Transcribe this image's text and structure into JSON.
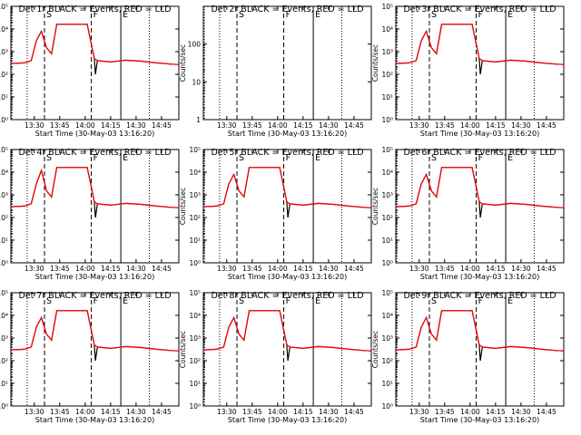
{
  "chart_data": [
    {
      "type": "line",
      "title": "Det 1r BLACK = Events, RED = LLD",
      "xlabel": "Start Time (30-May-03 13:16:20)",
      "ylabel": "Counts/sec",
      "y_scale": "log",
      "ylim": [
        1,
        100000
      ],
      "yticks": [
        "10⁰",
        "10¹",
        "10²",
        "10³",
        "10⁴",
        "10⁵"
      ],
      "xlim": [
        13.27,
        14.92
      ],
      "xticks": [
        "13:30",
        "13:45",
        "14:00",
        "14:15",
        "14:30",
        "14:45"
      ],
      "markers": [
        "S",
        "F",
        "E"
      ],
      "has_data": true,
      "series": [
        {
          "name": "Events",
          "color": "#000000",
          "x": [
            13.27,
            13.4,
            13.47,
            13.52,
            13.57,
            13.62,
            13.67,
            13.72,
            13.87,
            14.02,
            14.09,
            14.1,
            14.12,
            14.25,
            14.4,
            14.55,
            14.7,
            14.85,
            14.92
          ],
          "y": [
            300,
            320,
            400,
            3000,
            8000,
            1500,
            800,
            16000,
            16000,
            16000,
            500,
            100,
            400,
            350,
            420,
            380,
            320,
            280,
            270
          ]
        },
        {
          "name": "LLD",
          "color": "#ff0000",
          "x": [
            13.27,
            13.4,
            13.47,
            13.52,
            13.57,
            13.62,
            13.67,
            13.72,
            13.87,
            14.02,
            14.09,
            14.12,
            14.25,
            14.4,
            14.55,
            14.7,
            14.85,
            14.92
          ],
          "y": [
            300,
            320,
            400,
            3000,
            8000,
            1500,
            800,
            16000,
            16000,
            16000,
            500,
            400,
            350,
            420,
            380,
            320,
            280,
            270
          ]
        }
      ]
    },
    {
      "type": "line",
      "title": "Det 2r BLACK = Events, RED = LLD",
      "xlabel": "Start Time (30-May-03 13:16:20)",
      "ylabel": "Counts/sec",
      "y_scale": "log",
      "ylim": [
        1,
        1000
      ],
      "yticks": [
        "1",
        "10",
        "100"
      ],
      "xlim": [
        13.27,
        14.92
      ],
      "xticks": [
        "13:30",
        "13:45",
        "14:00",
        "14:15",
        "14:30",
        "14:45"
      ],
      "markers": [
        "S",
        "F",
        "E"
      ],
      "has_data": false,
      "series": []
    },
    {
      "type": "line",
      "title": "Det 3r BLACK = Events, RED = LLD",
      "xlabel": "Start Time (30-May-03 13:16:20)",
      "ylabel": "Counts/sec",
      "y_scale": "log",
      "ylim": [
        1,
        100000
      ],
      "yticks": [
        "10⁰",
        "10¹",
        "10²",
        "10³",
        "10⁴",
        "10⁵"
      ],
      "xlim": [
        13.27,
        14.92
      ],
      "xticks": [
        "13:30",
        "13:45",
        "14:00",
        "14:15",
        "14:30",
        "14:45"
      ],
      "markers": [
        "S",
        "F",
        "E"
      ],
      "has_data": true,
      "series": [
        {
          "name": "Events",
          "color": "#000000",
          "x": [
            13.27,
            13.4,
            13.47,
            13.52,
            13.57,
            13.62,
            13.67,
            13.72,
            13.87,
            14.02,
            14.09,
            14.1,
            14.12,
            14.25,
            14.4,
            14.55,
            14.7,
            14.85,
            14.92
          ],
          "y": [
            300,
            320,
            400,
            3000,
            8000,
            1500,
            800,
            16000,
            16000,
            16000,
            500,
            100,
            400,
            350,
            420,
            380,
            320,
            280,
            270
          ]
        },
        {
          "name": "LLD",
          "color": "#ff0000",
          "x": [
            13.27,
            13.4,
            13.47,
            13.52,
            13.57,
            13.62,
            13.67,
            13.72,
            13.87,
            14.02,
            14.09,
            14.12,
            14.25,
            14.4,
            14.55,
            14.7,
            14.85,
            14.92
          ],
          "y": [
            300,
            320,
            400,
            3000,
            8000,
            1500,
            800,
            16000,
            16000,
            16000,
            500,
            400,
            350,
            420,
            380,
            320,
            280,
            270
          ]
        }
      ]
    },
    {
      "type": "line",
      "title": "Det 4r BLACK = Events, RED = LLD",
      "xlabel": "Start Time (30-May-03 13:16:20)",
      "ylabel": "Counts/sec",
      "y_scale": "log",
      "ylim": [
        1,
        100000
      ],
      "yticks": [
        "10⁰",
        "10¹",
        "10²",
        "10³",
        "10⁴",
        "10⁵"
      ],
      "xlim": [
        13.27,
        14.92
      ],
      "xticks": [
        "13:30",
        "13:45",
        "14:00",
        "14:15",
        "14:30",
        "14:45"
      ],
      "markers": [
        "S",
        "F",
        "E"
      ],
      "has_data": true,
      "series": [
        {
          "name": "Events",
          "color": "#000000",
          "x": [
            13.27,
            13.4,
            13.47,
            13.52,
            13.57,
            13.62,
            13.67,
            13.72,
            13.87,
            14.02,
            14.09,
            14.1,
            14.12,
            14.25,
            14.4,
            14.55,
            14.7,
            14.85,
            14.92
          ],
          "y": [
            300,
            320,
            400,
            3000,
            12000,
            1500,
            800,
            16000,
            16000,
            16000,
            500,
            100,
            400,
            350,
            420,
            380,
            320,
            280,
            270
          ]
        },
        {
          "name": "LLD",
          "color": "#ff0000",
          "x": [
            13.27,
            13.4,
            13.47,
            13.52,
            13.57,
            13.62,
            13.67,
            13.72,
            13.87,
            14.02,
            14.09,
            14.12,
            14.25,
            14.4,
            14.55,
            14.7,
            14.85,
            14.92
          ],
          "y": [
            300,
            320,
            400,
            3000,
            12000,
            1500,
            800,
            16000,
            16000,
            16000,
            500,
            400,
            350,
            420,
            380,
            320,
            280,
            270
          ]
        }
      ]
    },
    {
      "type": "line",
      "title": "Det 5r BLACK = Events, RED = LLD",
      "xlabel": "Start Time (30-May-03 13:16:20)",
      "ylabel": "Counts/sec",
      "y_scale": "log",
      "ylim": [
        1,
        100000
      ],
      "yticks": [
        "10⁰",
        "10¹",
        "10²",
        "10³",
        "10⁴",
        "10⁵"
      ],
      "xlim": [
        13.27,
        14.92
      ],
      "xticks": [
        "13:30",
        "13:45",
        "14:00",
        "14:15",
        "14:30",
        "14:45"
      ],
      "markers": [
        "S",
        "F",
        "E"
      ],
      "has_data": true,
      "series": [
        {
          "name": "Events",
          "color": "#000000",
          "x": [
            13.27,
            13.4,
            13.47,
            13.52,
            13.57,
            13.62,
            13.67,
            13.72,
            13.87,
            14.02,
            14.09,
            14.1,
            14.12,
            14.25,
            14.4,
            14.55,
            14.7,
            14.85,
            14.92
          ],
          "y": [
            300,
            320,
            400,
            3000,
            8000,
            1500,
            800,
            16000,
            16000,
            16000,
            500,
            100,
            400,
            350,
            420,
            380,
            320,
            280,
            270
          ]
        },
        {
          "name": "LLD",
          "color": "#ff0000",
          "x": [
            13.27,
            13.4,
            13.47,
            13.52,
            13.57,
            13.62,
            13.67,
            13.72,
            13.87,
            14.02,
            14.09,
            14.12,
            14.25,
            14.4,
            14.55,
            14.7,
            14.85,
            14.92
          ],
          "y": [
            300,
            320,
            400,
            3000,
            8000,
            1500,
            800,
            16000,
            16000,
            16000,
            500,
            400,
            350,
            420,
            380,
            320,
            280,
            270
          ]
        }
      ]
    },
    {
      "type": "line",
      "title": "Det 6r BLACK = Events, RED = LLD",
      "xlabel": "Start Time (30-May-03 13:16:20)",
      "ylabel": "Counts/sec",
      "y_scale": "log",
      "ylim": [
        1,
        100000
      ],
      "yticks": [
        "10⁰",
        "10¹",
        "10²",
        "10³",
        "10⁴",
        "10⁵"
      ],
      "xlim": [
        13.27,
        14.92
      ],
      "xticks": [
        "13:30",
        "13:45",
        "14:00",
        "14:15",
        "14:30",
        "14:45"
      ],
      "markers": [
        "S",
        "F",
        "E"
      ],
      "has_data": true,
      "series": [
        {
          "name": "Events",
          "color": "#000000",
          "x": [
            13.27,
            13.4,
            13.47,
            13.52,
            13.57,
            13.62,
            13.67,
            13.72,
            13.87,
            14.02,
            14.09,
            14.1,
            14.12,
            14.25,
            14.4,
            14.55,
            14.7,
            14.85,
            14.92
          ],
          "y": [
            300,
            320,
            400,
            3000,
            8000,
            1500,
            800,
            16000,
            16000,
            16000,
            500,
            100,
            400,
            350,
            420,
            380,
            320,
            280,
            270
          ]
        },
        {
          "name": "LLD",
          "color": "#ff0000",
          "x": [
            13.27,
            13.4,
            13.47,
            13.52,
            13.57,
            13.62,
            13.67,
            13.72,
            13.87,
            14.02,
            14.09,
            14.12,
            14.25,
            14.4,
            14.55,
            14.7,
            14.85,
            14.92
          ],
          "y": [
            300,
            320,
            400,
            3000,
            8000,
            1500,
            800,
            16000,
            16000,
            16000,
            500,
            400,
            350,
            420,
            380,
            320,
            280,
            270
          ]
        }
      ]
    },
    {
      "type": "line",
      "title": "Det 7r BLACK = Events, RED = LLD",
      "xlabel": "Start Time (30-May-03 13:16:20)",
      "ylabel": "Counts/sec",
      "y_scale": "log",
      "ylim": [
        1,
        100000
      ],
      "yticks": [
        "10⁰",
        "10¹",
        "10²",
        "10³",
        "10⁴",
        "10⁵"
      ],
      "xlim": [
        13.27,
        14.92
      ],
      "xticks": [
        "13:30",
        "13:45",
        "14:00",
        "14:15",
        "14:30",
        "14:45"
      ],
      "markers": [
        "S",
        "F",
        "E"
      ],
      "has_data": true,
      "series": [
        {
          "name": "Events",
          "color": "#000000",
          "x": [
            13.27,
            13.4,
            13.47,
            13.52,
            13.57,
            13.62,
            13.67,
            13.72,
            13.87,
            14.02,
            14.09,
            14.1,
            14.12,
            14.25,
            14.4,
            14.55,
            14.7,
            14.85,
            14.92
          ],
          "y": [
            300,
            320,
            400,
            3000,
            8000,
            1500,
            800,
            16000,
            16000,
            16000,
            500,
            100,
            400,
            350,
            420,
            380,
            320,
            280,
            270
          ]
        },
        {
          "name": "LLD",
          "color": "#ff0000",
          "x": [
            13.27,
            13.4,
            13.47,
            13.52,
            13.57,
            13.62,
            13.67,
            13.72,
            13.87,
            14.02,
            14.09,
            14.12,
            14.25,
            14.4,
            14.55,
            14.7,
            14.85,
            14.92
          ],
          "y": [
            300,
            320,
            400,
            3000,
            8000,
            1500,
            800,
            16000,
            16000,
            16000,
            500,
            400,
            350,
            420,
            380,
            320,
            280,
            270
          ]
        }
      ]
    },
    {
      "type": "line",
      "title": "Det 8r BLACK = Events, RED = LLD",
      "xlabel": "Start Time (30-May-03 13:16:20)",
      "ylabel": "Counts/sec",
      "y_scale": "log",
      "ylim": [
        1,
        100000
      ],
      "yticks": [
        "10⁰",
        "10¹",
        "10²",
        "10³",
        "10⁴",
        "10⁵"
      ],
      "xlim": [
        13.27,
        14.92
      ],
      "xticks": [
        "13:30",
        "13:45",
        "14:00",
        "14:15",
        "14:30",
        "14:45"
      ],
      "markers": [
        "S",
        "F",
        "E"
      ],
      "has_data": true,
      "series": [
        {
          "name": "Events",
          "color": "#000000",
          "x": [
            13.27,
            13.4,
            13.47,
            13.52,
            13.57,
            13.62,
            13.67,
            13.72,
            13.87,
            14.02,
            14.09,
            14.1,
            14.12,
            14.25,
            14.4,
            14.55,
            14.7,
            14.85,
            14.92
          ],
          "y": [
            300,
            320,
            400,
            3000,
            8000,
            1500,
            800,
            16000,
            16000,
            16000,
            500,
            100,
            400,
            350,
            420,
            380,
            320,
            280,
            270
          ]
        },
        {
          "name": "LLD",
          "color": "#ff0000",
          "x": [
            13.27,
            13.4,
            13.47,
            13.52,
            13.57,
            13.62,
            13.67,
            13.72,
            13.87,
            14.02,
            14.09,
            14.12,
            14.25,
            14.4,
            14.55,
            14.7,
            14.85,
            14.92
          ],
          "y": [
            300,
            320,
            400,
            3000,
            8000,
            1500,
            800,
            16000,
            16000,
            16000,
            500,
            400,
            350,
            420,
            380,
            320,
            280,
            270
          ]
        }
      ]
    },
    {
      "type": "line",
      "title": "Det 9r BLACK = Events, RED = LLD",
      "xlabel": "Start Time (30-May-03 13:16:20)",
      "ylabel": "Counts/sec",
      "y_scale": "log",
      "ylim": [
        1,
        100000
      ],
      "yticks": [
        "10⁰",
        "10¹",
        "10²",
        "10³",
        "10⁴",
        "10⁵"
      ],
      "xlim": [
        13.27,
        14.92
      ],
      "xticks": [
        "13:30",
        "13:45",
        "14:00",
        "14:15",
        "14:30",
        "14:45"
      ],
      "markers": [
        "S",
        "F",
        "E"
      ],
      "has_data": true,
      "series": [
        {
          "name": "Events",
          "color": "#000000",
          "x": [
            13.27,
            13.4,
            13.47,
            13.52,
            13.57,
            13.62,
            13.67,
            13.72,
            13.87,
            14.02,
            14.09,
            14.1,
            14.12,
            14.25,
            14.4,
            14.55,
            14.7,
            14.85,
            14.92
          ],
          "y": [
            300,
            320,
            400,
            3000,
            8000,
            1500,
            800,
            16000,
            16000,
            16000,
            500,
            100,
            400,
            350,
            420,
            380,
            320,
            280,
            270
          ]
        },
        {
          "name": "LLD",
          "color": "#ff0000",
          "x": [
            13.27,
            13.4,
            13.47,
            13.52,
            13.57,
            13.62,
            13.67,
            13.72,
            13.87,
            14.02,
            14.09,
            14.12,
            14.25,
            14.4,
            14.55,
            14.7,
            14.85,
            14.92
          ],
          "y": [
            300,
            320,
            400,
            3000,
            8000,
            1500,
            800,
            16000,
            16000,
            16000,
            500,
            400,
            350,
            420,
            380,
            320,
            280,
            270
          ]
        }
      ]
    }
  ],
  "overlay_lines": {
    "dotted": [
      13.28,
      13.43,
      14.63
    ],
    "dashed": [
      13.6,
      14.06
    ],
    "solid": [
      14.35
    ]
  }
}
